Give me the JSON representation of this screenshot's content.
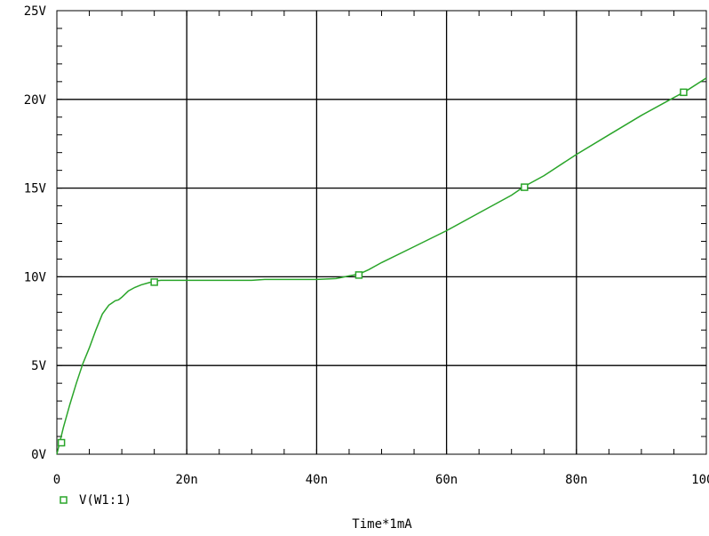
{
  "chart_data": {
    "type": "line",
    "title": "",
    "xlabel": "Time*1mA",
    "ylabel": "",
    "xlim": [
      0,
      100
    ],
    "ylim": [
      0,
      25
    ],
    "grid": true,
    "legend_placement": "bottom-left",
    "x_ticks": [
      {
        "value": 0,
        "label": "0"
      },
      {
        "value": 20,
        "label": "20n"
      },
      {
        "value": 40,
        "label": "40n"
      },
      {
        "value": 60,
        "label": "60n"
      },
      {
        "value": 80,
        "label": "80n"
      },
      {
        "value": 100,
        "label": "100n"
      }
    ],
    "y_ticks": [
      {
        "value": 0,
        "label": "0V"
      },
      {
        "value": 5,
        "label": "5V"
      },
      {
        "value": 10,
        "label": "10V"
      },
      {
        "value": 15,
        "label": "15V"
      },
      {
        "value": 20,
        "label": "20V"
      },
      {
        "value": 25,
        "label": "25V"
      }
    ],
    "series": [
      {
        "name": "V(W1:1)",
        "color": "#2aa52a",
        "marker": "square",
        "x": [
          0,
          1,
          2,
          3,
          4,
          5,
          6,
          7,
          8,
          9,
          9.5,
          10,
          11,
          12,
          13,
          14,
          15,
          16,
          18,
          20,
          25,
          30,
          32,
          35,
          40,
          43,
          45,
          46.5,
          48,
          50,
          55,
          60,
          65,
          70,
          72,
          75,
          80,
          85,
          90,
          95,
          97,
          100
        ],
        "y": [
          0,
          1.5,
          2.8,
          4.0,
          5.1,
          6.0,
          7.0,
          7.9,
          8.4,
          8.65,
          8.7,
          8.85,
          9.2,
          9.4,
          9.55,
          9.65,
          9.75,
          9.8,
          9.8,
          9.8,
          9.8,
          9.8,
          9.85,
          9.85,
          9.85,
          9.9,
          10.05,
          10.15,
          10.4,
          10.8,
          11.7,
          12.6,
          13.6,
          14.6,
          15.1,
          15.7,
          16.9,
          18.0,
          19.1,
          20.1,
          20.5,
          21.2
        ],
        "markers_x": [
          0.7,
          15,
          46.5,
          72,
          96.5
        ],
        "markers_y": [
          0.65,
          9.7,
          10.1,
          15.05,
          20.4
        ]
      }
    ]
  }
}
